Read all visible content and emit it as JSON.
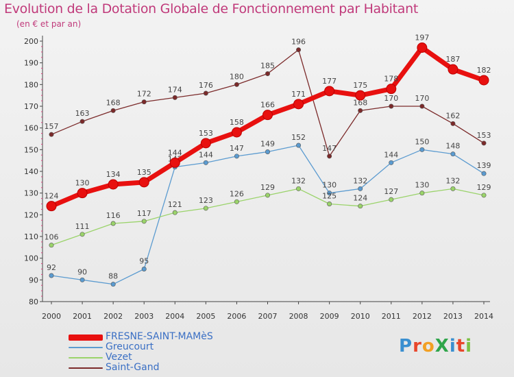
{
  "header": {
    "title": "Evolution de la Dotation Globale de Fonctionnement par Habitant",
    "subtitle": "(en € et par an)"
  },
  "logo": {
    "text": "ProXiti",
    "colors": [
      "#3a8fd0",
      "#e8462b",
      "#f2a024",
      "#2fa54a",
      "#3a8fd0",
      "#e8462b",
      "#7ac143"
    ]
  },
  "chart_data": {
    "type": "line",
    "title": "Evolution de la Dotation Globale de Fonctionnement par Habitant",
    "subtitle": "(en € et par an)",
    "x": [
      "2000",
      "2001",
      "2002",
      "2003",
      "2004",
      "2005",
      "2006",
      "2007",
      "2008",
      "2009",
      "2010",
      "2011",
      "2012",
      "2013",
      "2014"
    ],
    "ylim": [
      80,
      200
    ],
    "yticks": [
      80,
      90,
      100,
      110,
      120,
      130,
      140,
      150,
      160,
      170,
      180,
      190,
      200
    ],
    "grid": false,
    "legend_position": "bottom-left",
    "series": [
      {
        "name": "FRESNE-SAINT-MAMèS",
        "color": "#e8100f",
        "emphasis": true,
        "values": [
          124,
          130,
          134,
          135,
          144,
          153,
          158,
          166,
          171,
          177,
          175,
          178,
          197,
          187,
          182
        ]
      },
      {
        "name": "Greucourt",
        "color": "#5b9bd0",
        "values": [
          92,
          90,
          88,
          95,
          142,
          144,
          147,
          149,
          152,
          130,
          132,
          144,
          150,
          148,
          139
        ]
      },
      {
        "name": "Vezet",
        "color": "#9ad36a",
        "values": [
          106,
          111,
          116,
          117,
          121,
          123,
          126,
          129,
          132,
          125,
          124,
          127,
          130,
          132,
          129
        ]
      },
      {
        "name": "Saint-Gand",
        "color": "#7b2a2a",
        "values": [
          157,
          163,
          168,
          172,
          174,
          176,
          180,
          185,
          196,
          147,
          168,
          170,
          170,
          162,
          153
        ]
      }
    ]
  }
}
